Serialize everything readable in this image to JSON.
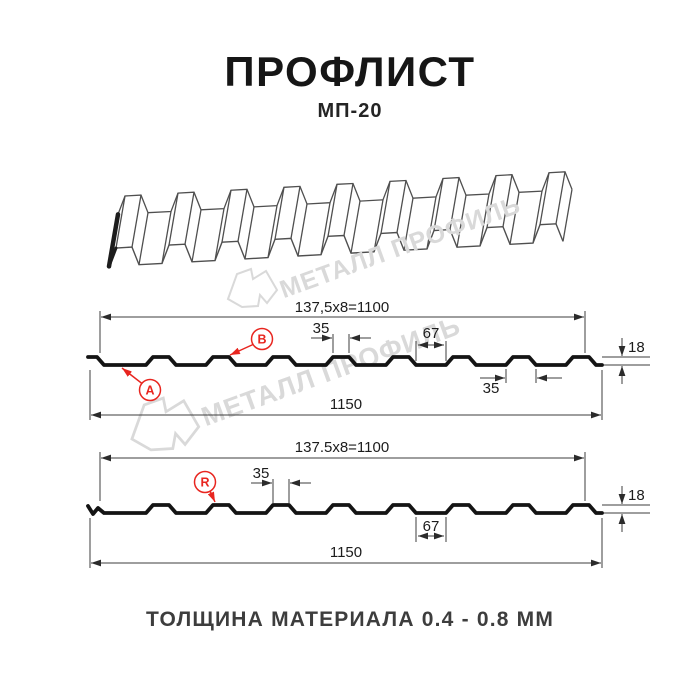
{
  "header": {
    "title": "ПРОФЛИСТ",
    "subtitle": "МП-20"
  },
  "watermark": {
    "brand": "МЕТАЛЛ ПРОФИЛЬ"
  },
  "footer": {
    "note": "ТОЛЩИНА МАТЕРИАЛА 0.4 - 0.8 ММ"
  },
  "colors": {
    "red": "#e8251f",
    "line": "#161616",
    "dim": "#3c3c3c",
    "sketch": "#4f4f4f",
    "watermark": "#d9d9d9"
  },
  "profile_top": {
    "pitch_formula": "137,5x8=1100",
    "overall_width": "1150",
    "rib_top": "35",
    "flat": "67",
    "height": "18",
    "rib_bottom": "35",
    "point_a": "A",
    "point_b": "B"
  },
  "profile_bottom": {
    "pitch_formula": "137.5x8=1100",
    "overall_width": "1150",
    "rib_top": "35",
    "flat": "67",
    "height": "18",
    "point_r": "R"
  }
}
